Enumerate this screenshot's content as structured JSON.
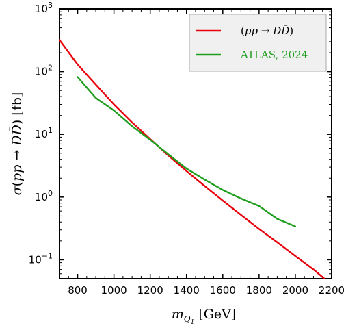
{
  "chart_data": {
    "type": "line",
    "title": "",
    "xlabel": "m_{Q_1} [GeV]",
    "ylabel": "σ(pp → D D̄) [fb]",
    "x_scale": "linear",
    "y_scale": "log",
    "xlim": [
      700,
      2200
    ],
    "ylim": [
      0.05,
      1000
    ],
    "x_ticks": [
      800,
      1000,
      1200,
      1400,
      1600,
      1800,
      2000,
      2200
    ],
    "x_tick_labels": [
      "800",
      "1000",
      "1200",
      "1400",
      "1600",
      "1800",
      "2000",
      "2200"
    ],
    "y_ticks": [
      0.1,
      1,
      10,
      100,
      1000
    ],
    "y_tick_labels": [
      {
        "base": "10",
        "exp": "−1"
      },
      {
        "base": "10",
        "exp": "0"
      },
      {
        "base": "10",
        "exp": "1"
      },
      {
        "base": "10",
        "exp": "2"
      },
      {
        "base": "10",
        "exp": "3"
      }
    ],
    "grid": false,
    "legend_position": "top-right",
    "series": [
      {
        "name": "(pp → D D̄)",
        "color": "#e8000b",
        "x": [
          700,
          800,
          900,
          1000,
          1100,
          1200,
          1300,
          1400,
          1500,
          1600,
          1700,
          1800,
          1900,
          2000,
          2100,
          2160
        ],
        "y": [
          320,
          130,
          62,
          30,
          15.5,
          8.4,
          4.6,
          2.6,
          1.5,
          0.88,
          0.52,
          0.31,
          0.19,
          0.115,
          0.07,
          0.05
        ]
      },
      {
        "name": "ATLAS, 2024",
        "color": "#1f9e1f",
        "x": [
          800,
          900,
          1000,
          1100,
          1200,
          1300,
          1400,
          1500,
          1600,
          1700,
          1800,
          1900,
          2000
        ],
        "y": [
          82,
          38,
          24,
          13.5,
          8.2,
          4.8,
          2.85,
          1.9,
          1.3,
          0.95,
          0.72,
          0.45,
          0.34
        ]
      }
    ]
  }
}
